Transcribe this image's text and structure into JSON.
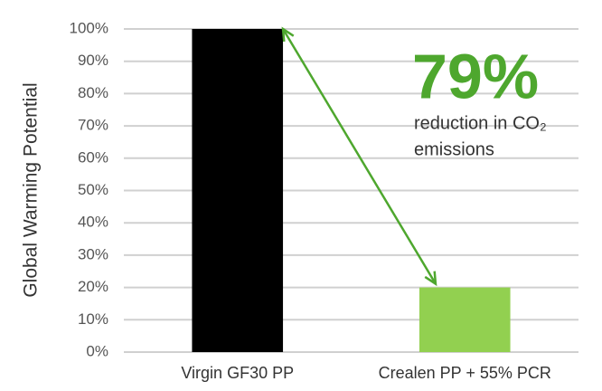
{
  "chart_data": {
    "type": "bar",
    "y_label": "Global Warming Potential",
    "categories": [
      "Virgin GF30 PP",
      "Crealen PP + 55% PCR"
    ],
    "values": [
      100,
      20
    ],
    "colors": [
      "#000000",
      "#92d050"
    ],
    "ylim": [
      0,
      100
    ],
    "yticks": [
      {
        "value": 0,
        "label": "0%"
      },
      {
        "value": 10,
        "label": "10%"
      },
      {
        "value": 20,
        "label": "20%"
      },
      {
        "value": 30,
        "label": "30%"
      },
      {
        "value": 40,
        "label": "40%"
      },
      {
        "value": 50,
        "label": "50%"
      },
      {
        "value": 60,
        "label": "60%"
      },
      {
        "value": 70,
        "label": "70%"
      },
      {
        "value": 80,
        "label": "80%"
      },
      {
        "value": 90,
        "label": "90%"
      },
      {
        "value": 100,
        "label": "100%"
      }
    ],
    "grid": true,
    "annotation": {
      "headline": "79%",
      "lines": [
        "reduction in CO₂",
        "emissions"
      ],
      "color": "#4ea72e"
    }
  }
}
